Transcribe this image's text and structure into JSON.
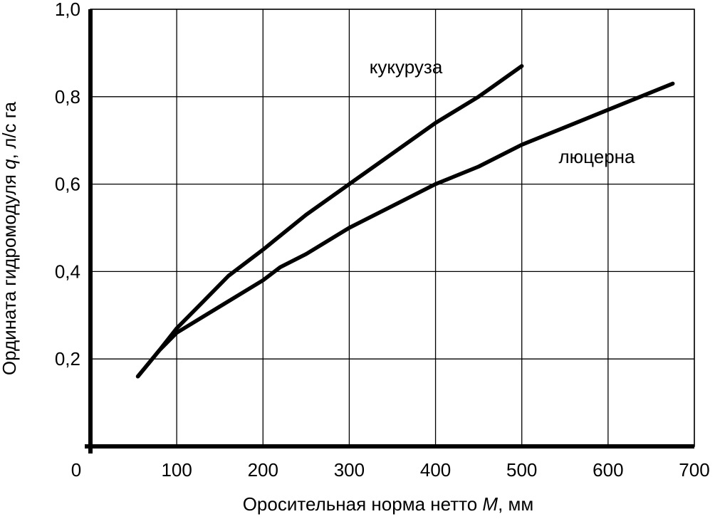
{
  "chart_data": {
    "type": "line",
    "title": "",
    "xlabel_parts": [
      "Оросительная норма нетто ",
      "M",
      ", мм"
    ],
    "ylabel_parts": [
      "Ордината гидромодуля ",
      "q",
      ", л/с га"
    ],
    "xlim": [
      0,
      700
    ],
    "ylim": [
      0,
      1.0
    ],
    "x_ticks": [
      100,
      200,
      300,
      400,
      500,
      600,
      700
    ],
    "x_tick_labels": [
      "100",
      "200",
      "300",
      "400",
      "500",
      "600",
      "700"
    ],
    "origin_label": "0",
    "y_ticks": [
      0.2,
      0.4,
      0.6,
      0.8,
      1.0
    ],
    "y_tick_labels": [
      "0,2",
      "0,4",
      "0,6",
      "0,8",
      "1,0"
    ],
    "grid": true,
    "series": [
      {
        "name": "кукуруза",
        "x": [
          55,
          80,
          100,
          130,
          160,
          200,
          250,
          300,
          350,
          400,
          450,
          500
        ],
        "y": [
          0.16,
          0.22,
          0.27,
          0.33,
          0.39,
          0.45,
          0.53,
          0.6,
          0.67,
          0.74,
          0.8,
          0.87
        ]
      },
      {
        "name": "люцерна",
        "x": [
          55,
          80,
          100,
          150,
          200,
          220,
          250,
          300,
          350,
          400,
          450,
          500,
          550,
          600,
          650,
          675
        ],
        "y": [
          0.16,
          0.22,
          0.26,
          0.32,
          0.38,
          0.41,
          0.44,
          0.5,
          0.55,
          0.6,
          0.64,
          0.69,
          0.73,
          0.77,
          0.81,
          0.83
        ]
      }
    ]
  }
}
